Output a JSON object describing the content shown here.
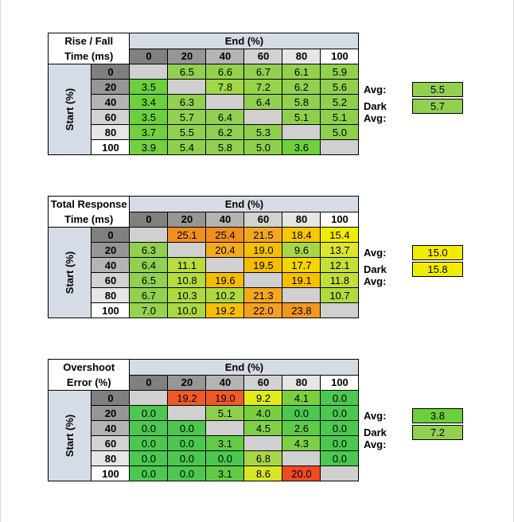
{
  "columns": [
    "0",
    "20",
    "40",
    "60",
    "80",
    "100"
  ],
  "end_label": "End (%)",
  "start_label": "Start (%)",
  "colors": {
    "header_grey": [
      "#808080",
      "#969696",
      "#b4b4b4",
      "#d2d2d2",
      "#e6e6e6",
      "#ffffff"
    ],
    "label_blue": "#d6dce5",
    "diagonal": "#d0d0d0"
  },
  "tables": [
    {
      "title_line1": "Rise / Fall",
      "title_line2": "Time (ms)",
      "avg_label": "Avg:",
      "avg_value": "5.5",
      "avg_color": "#92d050",
      "dark_label": "Dark Avg:",
      "dark_value": "5.7",
      "dark_color": "#92d050",
      "rows": [
        {
          "start": "0",
          "cells": [
            "",
            "6.5",
            "6.6",
            "6.7",
            "6.1",
            "5.9"
          ],
          "colors": [
            "diag",
            "#92d050",
            "#92d050",
            "#92d050",
            "#92d050",
            "#92d050"
          ]
        },
        {
          "start": "20",
          "cells": [
            "3.5",
            "",
            "7.8",
            "7.2",
            "6.2",
            "5.6"
          ],
          "colors": [
            "#6cd03c",
            "diag",
            "#a0d848",
            "#98d44a",
            "#92d050",
            "#92d050"
          ]
        },
        {
          "start": "40",
          "cells": [
            "3.4",
            "6.3",
            "",
            "6.4",
            "5.8",
            "5.2"
          ],
          "colors": [
            "#6cd03c",
            "#92d050",
            "diag",
            "#92d050",
            "#92d050",
            "#8ed04c"
          ]
        },
        {
          "start": "60",
          "cells": [
            "3.5",
            "5.7",
            "6.4",
            "",
            "5.1",
            "5.1"
          ],
          "colors": [
            "#6cd03c",
            "#92d050",
            "#92d050",
            "diag",
            "#8ed04c",
            "#8ed04c"
          ]
        },
        {
          "start": "80",
          "cells": [
            "3.7",
            "5.5",
            "6.2",
            "5.3",
            "",
            "5.0"
          ],
          "colors": [
            "#70d03e",
            "#92d050",
            "#92d050",
            "#8ed04c",
            "diag",
            "#8ed04c"
          ]
        },
        {
          "start": "100",
          "cells": [
            "3.9",
            "5.4",
            "5.8",
            "5.0",
            "3.6",
            ""
          ],
          "colors": [
            "#74d040",
            "#8ed04c",
            "#92d050",
            "#8ed04c",
            "#6ed03c",
            "diag"
          ]
        }
      ]
    },
    {
      "title_line1": "Total Response",
      "title_line2": "Time (ms)",
      "avg_label": "Avg:",
      "avg_value": "15.0",
      "avg_color": "#f2ec00",
      "dark_label": "Dark Avg:",
      "dark_value": "15.8",
      "dark_color": "#f2ec00",
      "rows": [
        {
          "start": "0",
          "cells": [
            "",
            "25.1",
            "25.4",
            "21.5",
            "18.4",
            "15.4"
          ],
          "colors": [
            "diag",
            "#f08e1e",
            "#f08e1e",
            "#f4a820",
            "#f6c800",
            "#f2ec00"
          ]
        },
        {
          "start": "20",
          "cells": [
            "6.3",
            "",
            "20.4",
            "19.0",
            "9.6",
            "13.7"
          ],
          "colors": [
            "#92d050",
            "diag",
            "#f4ac1e",
            "#f6c000",
            "#a6d846",
            "#dce62c"
          ]
        },
        {
          "start": "40",
          "cells": [
            "6.4",
            "11.1",
            "",
            "19.5",
            "17.7",
            "12.1"
          ],
          "colors": [
            "#92d050",
            "#b8dc3c",
            "diag",
            "#f6bc00",
            "#f6d400",
            "#c6e036"
          ]
        },
        {
          "start": "60",
          "cells": [
            "6.5",
            "10.8",
            "19.6",
            "",
            "19.1",
            "11.8"
          ],
          "colors": [
            "#92d050",
            "#b4dc3e",
            "#f6bc00",
            "diag",
            "#f6c000",
            "#c2de38"
          ]
        },
        {
          "start": "80",
          "cells": [
            "6.7",
            "10.3",
            "10.2",
            "21.3",
            "",
            "10.7"
          ],
          "colors": [
            "#92d050",
            "#aeda40",
            "#aeda40",
            "#f4a820",
            "diag",
            "#b2da3e"
          ]
        },
        {
          "start": "100",
          "cells": [
            "7.0",
            "10.0",
            "19.2",
            "22.0",
            "23.8",
            ""
          ],
          "colors": [
            "#96d24e",
            "#aad842",
            "#f6c000",
            "#f4a020",
            "#f2961e",
            "diag"
          ]
        }
      ]
    },
    {
      "title_line1": "Overshoot",
      "title_line2": "Error (%)",
      "avg_label": "Avg:",
      "avg_value": "3.8",
      "avg_color": "#6cd03c",
      "dark_label": "Dark Avg:",
      "dark_value": "7.2",
      "dark_color": "#92d050",
      "rows": [
        {
          "start": "0",
          "cells": [
            "",
            "19.2",
            "19.0",
            "9.2",
            "4.1",
            "0.0"
          ],
          "colors": [
            "diag",
            "#f05a28",
            "#f05a28",
            "#e2ea1a",
            "#78d040",
            "#4cc850"
          ]
        },
        {
          "start": "20",
          "cells": [
            "0.0",
            "",
            "5.1",
            "4.0",
            "0.0",
            "0.0"
          ],
          "colors": [
            "#4cc850",
            "diag",
            "#8ed04c",
            "#78d040",
            "#4cc850",
            "#4cc850"
          ]
        },
        {
          "start": "40",
          "cells": [
            "0.0",
            "0.0",
            "",
            "4.5",
            "2.6",
            "0.0"
          ],
          "colors": [
            "#4cc850",
            "#4cc850",
            "diag",
            "#80d046",
            "#5ecc46",
            "#4cc850"
          ]
        },
        {
          "start": "60",
          "cells": [
            "0.0",
            "0.0",
            "3.1",
            "",
            "4.3",
            "0.0"
          ],
          "colors": [
            "#4cc850",
            "#4cc850",
            "#64cc44",
            "diag",
            "#7cd044",
            "#4cc850"
          ]
        },
        {
          "start": "80",
          "cells": [
            "0.0",
            "0.0",
            "0.0",
            "6.8",
            "",
            "0.0"
          ],
          "colors": [
            "#4cc850",
            "#4cc850",
            "#4cc850",
            "#a8d646",
            "diag",
            "#4cc850"
          ]
        },
        {
          "start": "100",
          "cells": [
            "0.0",
            "0.0",
            "3.1",
            "8.6",
            "20.0",
            ""
          ],
          "colors": [
            "#4cc850",
            "#4cc850",
            "#64cc44",
            "#d6e624",
            "#f04a24",
            "diag"
          ]
        }
      ]
    }
  ]
}
